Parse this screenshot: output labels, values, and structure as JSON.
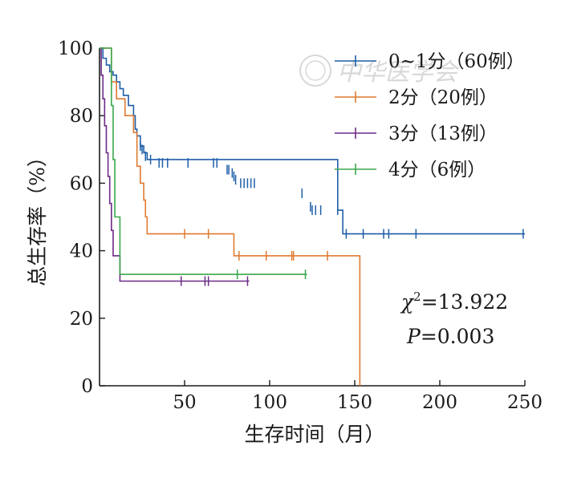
{
  "chart_data": {
    "type": "line",
    "subtype": "kaplan-meier",
    "title": "",
    "xlabel": "生存时间（月）",
    "ylabel": "总生存率（%）",
    "xlim": [
      0,
      250
    ],
    "ylim": [
      0,
      100
    ],
    "xticks": [
      50,
      100,
      150,
      200,
      250
    ],
    "yticks": [
      0,
      20,
      40,
      60,
      80,
      100
    ],
    "grid": false,
    "legend_position": "top-right",
    "annotations": {
      "chi_symbol": "χ",
      "chi_sup": "2",
      "chi_value": "=13.922",
      "p_symbol": "P",
      "p_value": "=0.003"
    },
    "watermark": "中华医学会",
    "series": [
      {
        "name": "0~1分（60例）",
        "color": "#1f5fa8",
        "steps": [
          [
            0,
            100
          ],
          [
            2,
            97
          ],
          [
            4,
            95
          ],
          [
            6,
            93
          ],
          [
            8,
            92
          ],
          [
            10,
            90
          ],
          [
            12,
            88
          ],
          [
            14,
            86
          ],
          [
            17,
            83
          ],
          [
            20,
            80
          ],
          [
            21,
            76
          ],
          [
            22,
            74
          ],
          [
            24,
            71
          ],
          [
            26,
            69
          ],
          [
            28,
            67
          ],
          [
            140,
            52
          ],
          [
            143,
            45
          ],
          [
            250,
            45
          ]
        ],
        "censored": [
          [
            24,
            71
          ],
          [
            25,
            70
          ],
          [
            27,
            68
          ],
          [
            30,
            67
          ],
          [
            35,
            66
          ],
          [
            37,
            66
          ],
          [
            40,
            66
          ],
          [
            52,
            66
          ],
          [
            67,
            66
          ],
          [
            69,
            66
          ],
          [
            75,
            64
          ],
          [
            76,
            64
          ],
          [
            78,
            63
          ],
          [
            79,
            62
          ],
          [
            80,
            61
          ],
          [
            83,
            60
          ],
          [
            85,
            60
          ],
          [
            87,
            60
          ],
          [
            89,
            60
          ],
          [
            91,
            60
          ],
          [
            119,
            57
          ],
          [
            124,
            53
          ],
          [
            125,
            52
          ],
          [
            127,
            52
          ],
          [
            130,
            52
          ],
          [
            140,
            52
          ],
          [
            145,
            45
          ],
          [
            155,
            45
          ],
          [
            167,
            45
          ],
          [
            170,
            45
          ],
          [
            186,
            45
          ],
          [
            249,
            45
          ]
        ]
      },
      {
        "name": "2分（20例）",
        "color": "#e07a30",
        "steps": [
          [
            0,
            100
          ],
          [
            7,
            90
          ],
          [
            10,
            85
          ],
          [
            15,
            80
          ],
          [
            20,
            75
          ],
          [
            22,
            65
          ],
          [
            24,
            60
          ],
          [
            26,
            55
          ],
          [
            27,
            50
          ],
          [
            28,
            45
          ],
          [
            79,
            38.5
          ],
          [
            153,
            0
          ]
        ],
        "censored": [
          [
            50,
            45
          ],
          [
            64,
            45
          ],
          [
            82,
            38.5
          ],
          [
            98,
            38.5
          ],
          [
            113,
            38.5
          ],
          [
            114,
            38.5
          ],
          [
            134,
            38.5
          ]
        ]
      },
      {
        "name": "3分（13例）",
        "color": "#6e2a88",
        "steps": [
          [
            0,
            100
          ],
          [
            1,
            92
          ],
          [
            2,
            85
          ],
          [
            3,
            77
          ],
          [
            4,
            69
          ],
          [
            5,
            62
          ],
          [
            6,
            54
          ],
          [
            7,
            46
          ],
          [
            8,
            38.5
          ],
          [
            12,
            31
          ],
          [
            88,
            31
          ]
        ],
        "censored": [
          [
            48,
            31
          ],
          [
            62,
            31
          ],
          [
            64,
            31
          ],
          [
            87,
            31
          ]
        ]
      },
      {
        "name": "4分（6例）",
        "color": "#3aa84c",
        "steps": [
          [
            0,
            100
          ],
          [
            7,
            83
          ],
          [
            8,
            67
          ],
          [
            9,
            50
          ],
          [
            12,
            33
          ],
          [
            122,
            33
          ]
        ],
        "censored": [
          [
            81,
            33
          ],
          [
            121,
            33
          ]
        ]
      }
    ]
  }
}
